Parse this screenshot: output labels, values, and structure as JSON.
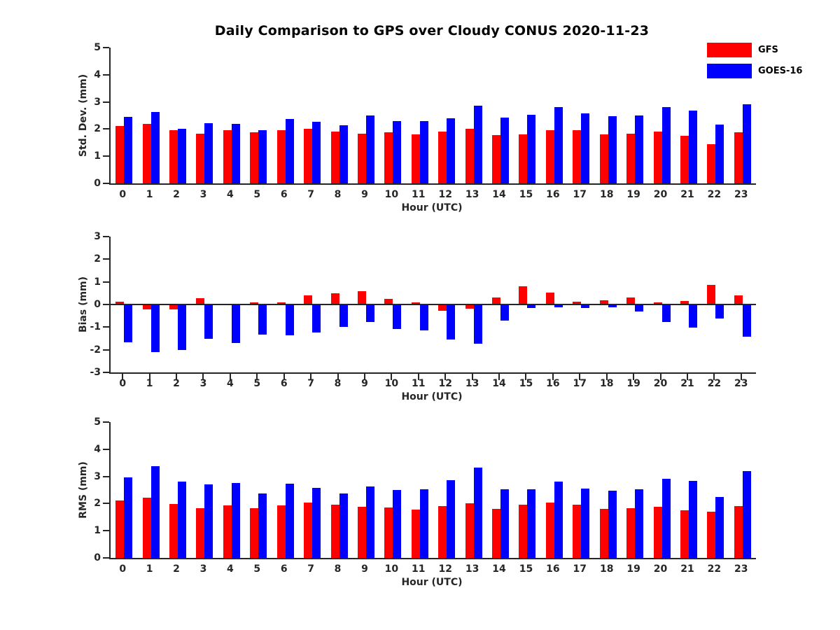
{
  "title": "Daily Comparison to GPS over Cloudy CONUS 2020-11-23",
  "legend": [
    {
      "label": "GFS",
      "color": "#ff0000"
    },
    {
      "label": "GOES-16",
      "color": "#0000ff"
    }
  ],
  "colors": {
    "gfs": "#ff0000",
    "goes16": "#0000ff",
    "axis": "#262626"
  },
  "chart_data": [
    {
      "type": "bar",
      "ylabel": "Std. Dev. (mm)",
      "xlabel": "Hour (UTC)",
      "ylim": [
        0,
        5
      ],
      "yticks": [
        5,
        4,
        3,
        2,
        1,
        0
      ],
      "grid": false,
      "legend_position": "top-right",
      "categories": [
        "0",
        "1",
        "2",
        "3",
        "4",
        "5",
        "6",
        "7",
        "8",
        "9",
        "10",
        "11",
        "12",
        "13",
        "14",
        "15",
        "16",
        "17",
        "18",
        "19",
        "20",
        "21",
        "22",
        "23"
      ],
      "series": [
        {
          "name": "GFS",
          "color": "#ff0000",
          "values": [
            2.12,
            2.2,
            1.97,
            1.82,
            1.95,
            1.88,
            1.95,
            2.02,
            1.9,
            1.82,
            1.87,
            1.8,
            1.91,
            2.02,
            1.79,
            1.8,
            1.97,
            1.96,
            1.8,
            1.84,
            1.9,
            1.75,
            1.45,
            1.88
          ]
        },
        {
          "name": "GOES-16",
          "color": "#0000ff",
          "values": [
            2.45,
            2.64,
            2.0,
            2.22,
            2.2,
            1.97,
            2.38,
            2.27,
            2.15,
            2.51,
            2.3,
            2.3,
            2.4,
            2.85,
            2.43,
            2.53,
            2.82,
            2.57,
            2.48,
            2.5,
            2.82,
            2.67,
            2.17,
            2.9
          ]
        }
      ]
    },
    {
      "type": "bar",
      "ylabel": "Bias (mm)",
      "xlabel": "Hour (UTC)",
      "ylim": [
        -3,
        3
      ],
      "yticks": [
        3,
        2,
        1,
        0,
        -1,
        -2,
        -3
      ],
      "grid": false,
      "zero_line": true,
      "categories": [
        "0",
        "1",
        "2",
        "3",
        "4",
        "5",
        "6",
        "7",
        "8",
        "9",
        "10",
        "11",
        "12",
        "13",
        "14",
        "15",
        "16",
        "17",
        "18",
        "19",
        "20",
        "21",
        "22",
        "23"
      ],
      "series": [
        {
          "name": "GFS",
          "color": "#ff0000",
          "values": [
            0.13,
            -0.21,
            -0.22,
            0.27,
            0.02,
            0.08,
            0.1,
            0.4,
            0.5,
            0.58,
            0.25,
            0.08,
            -0.28,
            -0.18,
            0.3,
            0.8,
            0.53,
            0.13,
            0.2,
            0.3,
            0.1,
            0.15,
            0.88,
            0.4
          ]
        },
        {
          "name": "GOES-16",
          "color": "#0000ff",
          "values": [
            -1.67,
            -2.1,
            -2.0,
            -1.52,
            -1.7,
            -1.33,
            -1.35,
            -1.25,
            -0.98,
            -0.78,
            -1.08,
            -1.15,
            -1.55,
            -1.72,
            -0.72,
            -0.15,
            -0.13,
            -0.15,
            -0.13,
            -0.32,
            -0.76,
            -1.02,
            -0.62,
            -1.41
          ]
        }
      ]
    },
    {
      "type": "bar",
      "ylabel": "RMS (mm)",
      "xlabel": "Hour (UTC)",
      "ylim": [
        0,
        5
      ],
      "yticks": [
        5,
        4,
        3,
        2,
        1,
        0
      ],
      "grid": false,
      "categories": [
        "0",
        "1",
        "2",
        "3",
        "4",
        "5",
        "6",
        "7",
        "8",
        "9",
        "10",
        "11",
        "12",
        "13",
        "14",
        "15",
        "16",
        "17",
        "18",
        "19",
        "20",
        "21",
        "22",
        "23"
      ],
      "series": [
        {
          "name": "GFS",
          "color": "#ff0000",
          "values": [
            2.12,
            2.21,
            1.98,
            1.84,
            1.94,
            1.84,
            1.94,
            2.04,
            1.96,
            1.89,
            1.86,
            1.78,
            1.92,
            2.02,
            1.8,
            1.96,
            2.03,
            1.96,
            1.8,
            1.84,
            1.89,
            1.75,
            1.69,
            1.92
          ]
        },
        {
          "name": "GOES-16",
          "color": "#0000ff",
          "values": [
            2.97,
            3.37,
            2.8,
            2.7,
            2.77,
            2.36,
            2.73,
            2.57,
            2.36,
            2.62,
            2.51,
            2.53,
            2.85,
            3.32,
            2.53,
            2.53,
            2.82,
            2.56,
            2.47,
            2.52,
            2.91,
            2.84,
            2.25,
            3.2
          ]
        }
      ]
    }
  ]
}
